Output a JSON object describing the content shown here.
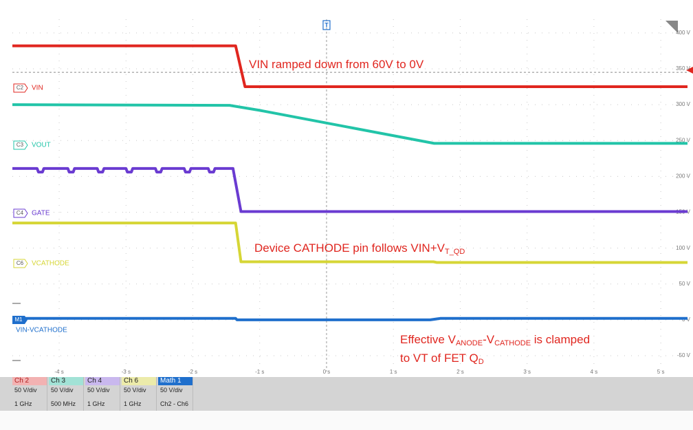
{
  "chart_data": {
    "type": "line",
    "xlim": [
      -4.7,
      5.4
    ],
    "ylim": [
      -72,
      419
    ],
    "xticks": [
      {
        "value": -4,
        "label": "-4 s"
      },
      {
        "value": -3,
        "label": "-3 s"
      },
      {
        "value": -2,
        "label": "-2 s"
      },
      {
        "value": -1,
        "label": "-1 s"
      },
      {
        "value": 0,
        "label": "0 s"
      },
      {
        "value": 1,
        "label": "1 s"
      },
      {
        "value": 2,
        "label": "2 s"
      },
      {
        "value": 3,
        "label": "3 s"
      },
      {
        "value": 4,
        "label": "4 s"
      },
      {
        "value": 5,
        "label": "5 s"
      }
    ],
    "yticks": [
      {
        "value": 400,
        "label": "400 V"
      },
      {
        "value": 350,
        "label": "350 V"
      },
      {
        "value": 300,
        "label": "300 V"
      },
      {
        "value": 250,
        "label": "250 V"
      },
      {
        "value": 200,
        "label": "200 V"
      },
      {
        "value": 150,
        "label": "150 V"
      },
      {
        "value": 100,
        "label": "100 V"
      },
      {
        "value": 50,
        "label": "50 V"
      },
      {
        "value": 0,
        "label": "0 V"
      },
      {
        "value": -50,
        "label": "-50 V"
      }
    ],
    "grid": true,
    "trigger_level": 345,
    "series": [
      {
        "name": "VIN",
        "channel": "C2",
        "color": "#e0261f",
        "x": [
          -4.7,
          -1.36,
          -1.22,
          5.4
        ],
        "values": [
          382,
          382,
          325,
          325
        ]
      },
      {
        "name": "VOUT",
        "channel": "C3",
        "color": "#22c4a8",
        "x": [
          -4.7,
          -1.45,
          -1.0,
          1.61,
          5.4
        ],
        "values": [
          300,
          299,
          292,
          246,
          246
        ]
      },
      {
        "name": "GATE",
        "channel": "C4",
        "color": "#6a3bd1",
        "x": [
          -4.7,
          -4.33,
          -4.31,
          -4.25,
          -4.23,
          -3.87,
          -3.85,
          -3.79,
          -3.77,
          -3.43,
          -3.41,
          -3.35,
          -3.33,
          -3.0,
          -2.98,
          -2.92,
          -2.9,
          -2.56,
          -2.54,
          -2.48,
          -2.46,
          -2.13,
          -2.11,
          -2.05,
          -2.03,
          -1.77,
          -1.75,
          -1.69,
          -1.67,
          -1.4,
          -1.28,
          5.4
        ],
        "values": [
          211,
          211,
          206,
          206,
          211,
          211,
          206,
          206,
          211,
          211,
          206,
          206,
          211,
          211,
          206,
          206,
          211,
          211,
          206,
          206,
          211,
          211,
          206,
          206,
          211,
          211,
          206,
          206,
          211,
          211,
          151,
          151
        ]
      },
      {
        "name": "VCATHODE",
        "channel": "C6",
        "color": "#d6d636",
        "x": [
          -4.7,
          -1.36,
          -1.28,
          1.6,
          1.65,
          5.4
        ],
        "values": [
          135,
          135,
          81,
          81,
          80,
          80
        ]
      },
      {
        "name": "VIN-VCATHODE",
        "channel": "M1",
        "color": "#1f6fcc",
        "x": [
          -4.7,
          -1.36,
          -1.34,
          1.55,
          1.7,
          5.4
        ],
        "values": [
          2,
          2,
          0,
          0,
          2,
          2
        ]
      }
    ],
    "annotations": [
      [
        {
          "text": "VIN ramped down from 60V to 0V"
        }
      ],
      [
        {
          "text": "Device CATHODE pin follows VIN+V"
        },
        {
          "sub": "T_QD"
        }
      ],
      [
        {
          "text": "Effective V"
        },
        {
          "sub": "ANODE"
        },
        {
          "text": "-V"
        },
        {
          "sub": "CATHODE"
        },
        {
          "text": " is clamped"
        }
      ],
      [
        {
          "text": "to VT of FET Q"
        },
        {
          "sub": "D"
        }
      ]
    ],
    "trigger_marker": "T"
  },
  "channel_panel": [
    {
      "header": "Ch 2",
      "lines": [
        "50 V/div",
        "1 GHz"
      ]
    },
    {
      "header": "Ch 3",
      "lines": [
        "50 V/div",
        "500 MHz"
      ]
    },
    {
      "header": "Ch 4",
      "lines": [
        "50 V/div",
        "1 GHz"
      ]
    },
    {
      "header": "Ch 6",
      "lines": [
        "50 V/div",
        "1 GHz"
      ]
    },
    {
      "header": "Math 1",
      "lines": [
        "50 V/div",
        "Ch2 - Ch6"
      ]
    }
  ]
}
